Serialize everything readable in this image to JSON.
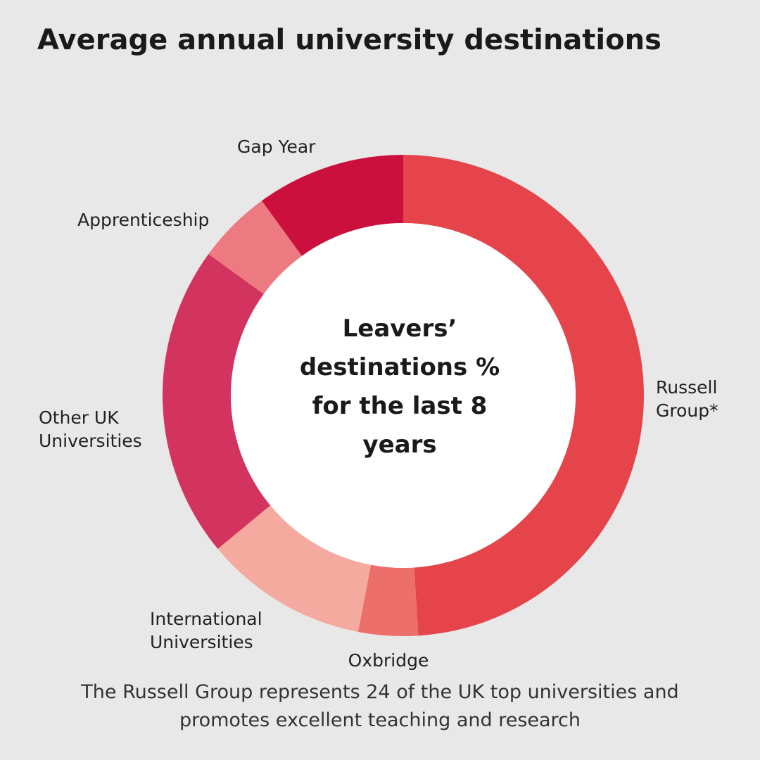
{
  "chart_data": {
    "type": "donut",
    "title": "Average annual university destinations",
    "center_text": "Leavers’ destinations % for the last 8 years",
    "footnote": "The Russell Group represents 24 of the UK top universities and promotes excellent teaching and research",
    "categories": [
      "Russell Group*",
      "Oxbridge",
      "International Universities",
      "Other UK Universities",
      "Apprenticeship",
      "Gap Year"
    ],
    "values": [
      49,
      4,
      11,
      21,
      5,
      10
    ],
    "colors": [
      "#e5444a",
      "#ec6f6a",
      "#f4aa9e",
      "#d3335f",
      "#ec7a80",
      "#cc103d"
    ]
  }
}
